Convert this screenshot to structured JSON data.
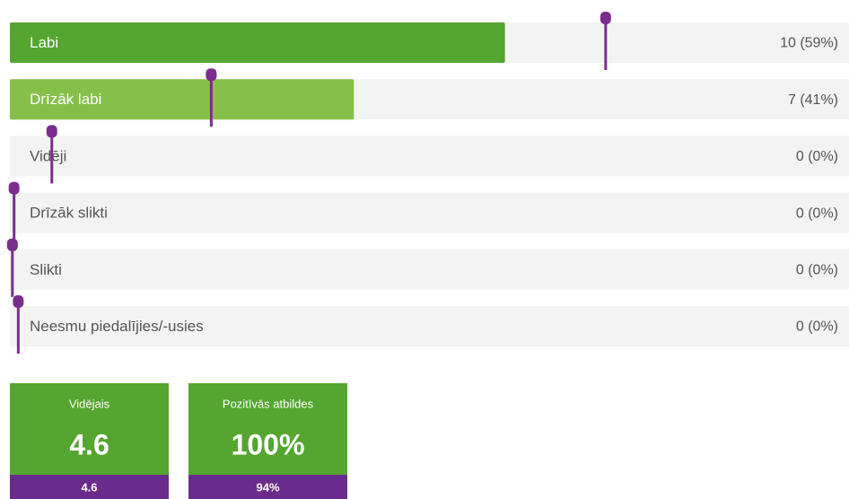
{
  "chart_data": {
    "type": "hbar",
    "categories": [
      "Labi",
      "Drīzāk labi",
      "Vidēji",
      "Drīzāk slikti",
      "Slikti",
      "Neesmu piedalījies/-usies"
    ],
    "values": [
      59,
      41,
      0,
      0,
      0,
      0
    ],
    "value_labels": [
      "10 (59%)",
      "7 (41%)",
      "0 (0%)",
      "0 (0%)",
      "0 (0%)",
      "0 (0%)"
    ],
    "colors": [
      "#55a630",
      "#86c04a",
      "#55a630",
      "#55a630",
      "#55a630",
      "#55a630"
    ],
    "xlim": [
      0,
      100
    ],
    "markers": {
      "color": "#7b2d8e",
      "values": [
        71,
        24,
        5,
        0.5,
        0.3,
        1
      ]
    }
  },
  "summary": [
    {
      "title": "Vidējais",
      "value": "4.6",
      "benchmark": "4.6"
    },
    {
      "title": "Pozitīvās atbildes",
      "value": "100%",
      "benchmark": "94%"
    }
  ]
}
